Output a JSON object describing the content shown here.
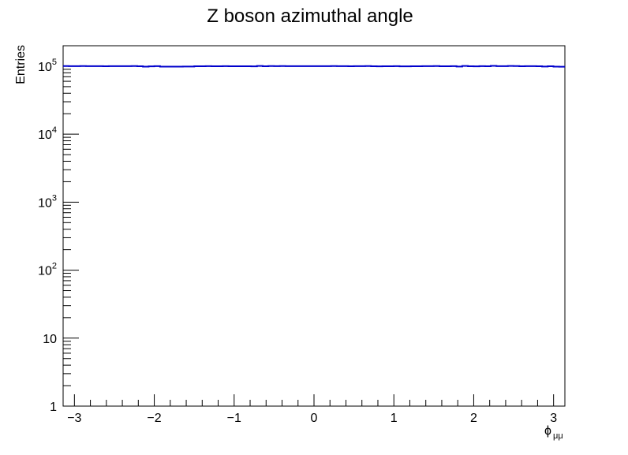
{
  "chart_data": {
    "type": "line",
    "title": "Z boson azimuthal angle",
    "xlabel_main": "ϕ",
    "xlabel_sub": "μμ",
    "ylabel": "Entries",
    "xlim": [
      -3.1416,
      3.1416
    ],
    "ylim": [
      1,
      200000
    ],
    "y_scale": "log",
    "grid": false,
    "line_color": "#0000cc",
    "x_ticks": [
      {
        "value": -3,
        "label": "−3"
      },
      {
        "value": -2,
        "label": "−2"
      },
      {
        "value": -1,
        "label": "−1"
      },
      {
        "value": 0,
        "label": "0"
      },
      {
        "value": 1,
        "label": "1"
      },
      {
        "value": 2,
        "label": "2"
      },
      {
        "value": 3,
        "label": "3"
      }
    ],
    "y_ticks": [
      {
        "value": 1,
        "base": "1",
        "exp": ""
      },
      {
        "value": 10,
        "base": "10",
        "exp": ""
      },
      {
        "value": 100,
        "base": "10",
        "exp": "2"
      },
      {
        "value": 1000,
        "base": "10",
        "exp": "3"
      },
      {
        "value": 10000,
        "base": "10",
        "exp": "4"
      },
      {
        "value": 100000,
        "base": "10",
        "exp": "5"
      }
    ],
    "series": [
      {
        "values": [
          100500,
          100300,
          100200,
          100400,
          100100,
          100300,
          100200,
          100000,
          100200,
          100300,
          100100,
          100200,
          100400,
          100000,
          98500,
          99500,
          100300,
          98600,
          98700,
          98600,
          98700,
          98800,
          99000,
          99800,
          99900,
          100100,
          100000,
          99900,
          100200,
          99800,
          99700,
          99800,
          100000,
          99600,
          100800,
          100000,
          100600,
          100100,
          100500,
          100300,
          100100,
          100300,
          100200,
          100100,
          100200,
          100300,
          100100,
          100400,
          100200,
          100300,
          99900,
          100200,
          100100,
          100400,
          99700,
          99600,
          99800,
          100000,
          100200,
          99500,
          99500,
          99700,
          100000,
          100100,
          100200,
          100400,
          99800,
          99900,
          100300,
          98900,
          101000,
          100000,
          99500,
          100200,
          99800,
          101200,
          100300,
          100200,
          101000,
          100400,
          99900,
          100200,
          100100,
          99800,
          98800,
          99700,
          98600,
          98300
        ]
      }
    ]
  }
}
